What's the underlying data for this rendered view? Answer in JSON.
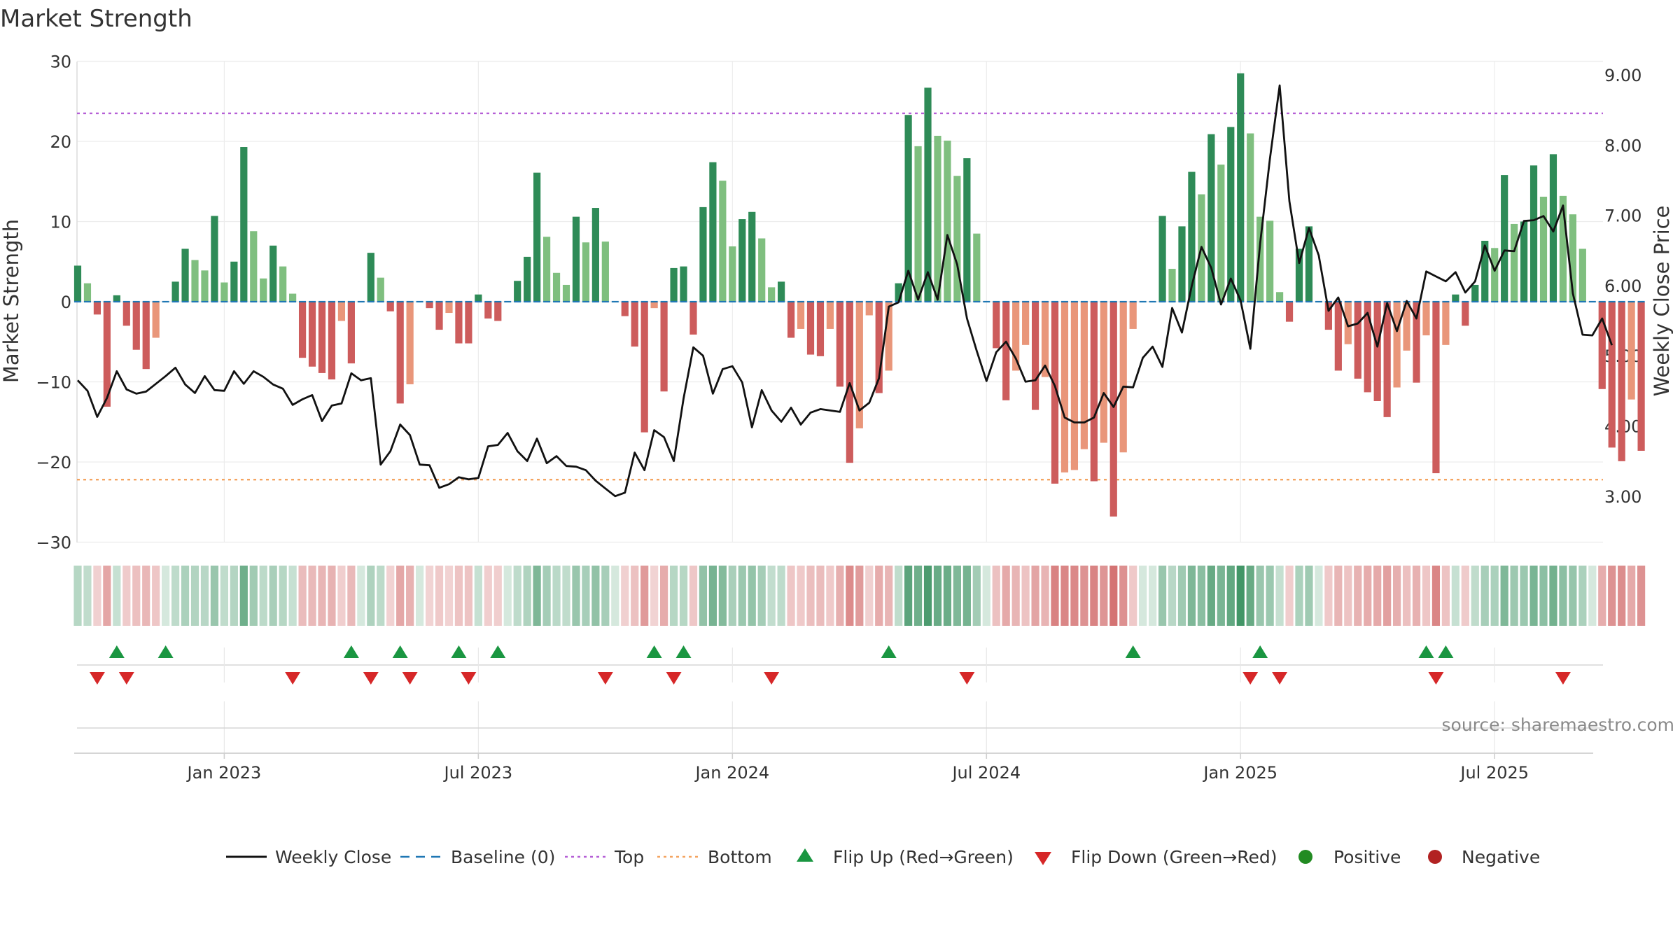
{
  "title": "Market Strength",
  "source": "source: sharemaestro.com",
  "colors": {
    "green_dark": "#2e8b57",
    "green_light": "#7fbf7f",
    "red_dark": "#cd5c5c",
    "red_light": "#e9967a",
    "line": "#111111",
    "baseline": "#1f77b4",
    "top": "#b55fd6",
    "bottom": "#f4a460",
    "flip_up": "#1a9641",
    "flip_down": "#d62728",
    "positive": "#228b22",
    "negative": "#b22222"
  },
  "chart_data": {
    "type": "bar",
    "title": "Market Strength",
    "ylabel": "Market Strength",
    "y2label": "Weekly Close Price",
    "ylim": [
      -30,
      30
    ],
    "y2lim": [
      2.4,
      9.2
    ],
    "yticks": [
      30,
      20,
      10,
      0,
      -10,
      -20,
      -30
    ],
    "yticks_labels": [
      "30",
      "20",
      "10",
      "0",
      "−10",
      "−20",
      "−30"
    ],
    "y2ticks": [
      9.0,
      8.0,
      7.0,
      6.0,
      5.0,
      4.0,
      3.0
    ],
    "y2ticks_labels": [
      "9.00",
      "8.00",
      "7.00",
      "6.00",
      "5.00",
      "4.00",
      "3.00"
    ],
    "xticks_index": [
      15,
      41,
      67,
      93,
      119,
      145
    ],
    "xticks_labels": [
      "Jan 2023",
      "Jul 2023",
      "Jan 2024",
      "Jul 2024",
      "Jan 2025",
      "Jul 2025"
    ],
    "top_level": 23.5,
    "bottom_level": -22.2,
    "baseline": 0,
    "strength": [
      4.5,
      2.3,
      -1.6,
      -13.1,
      0.8,
      -3,
      -6,
      -8.4,
      -4.5,
      0,
      2.5,
      6.6,
      5.2,
      3.9,
      10.7,
      2.4,
      5,
      19.3,
      8.8,
      2.9,
      7,
      4.4,
      1,
      -7,
      -8.1,
      -8.9,
      -9.7,
      -2.4,
      -7.7,
      0,
      6.1,
      3,
      -1.2,
      -12.7,
      -10.3,
      0,
      -0.8,
      -3.5,
      -1.4,
      -5.2,
      -5.2,
      0.9,
      -2.1,
      -2.4,
      0,
      2.6,
      5.6,
      16.1,
      8.1,
      3.6,
      2.1,
      10.6,
      7.4,
      11.7,
      7.5,
      0,
      -1.8,
      -5.6,
      -16.3,
      -0.8,
      -11.2,
      4.2,
      4.4,
      -4.1,
      11.8,
      17.4,
      15.1,
      6.9,
      10.3,
      11.2,
      7.9,
      1.8,
      2.5,
      -4.5,
      -3.4,
      -6.6,
      -6.8,
      -3.4,
      -10.6,
      -20.1,
      -15.8,
      -1.7,
      -11.4,
      -8.6,
      2.3,
      23.3,
      19.4,
      26.7,
      20.7,
      20.1,
      15.7,
      17.9,
      8.5,
      0,
      -5.8,
      -12.3,
      -8.6,
      -5.4,
      -13.5,
      -9.4,
      -22.7,
      -21.3,
      -21,
      -18.4,
      -22.4,
      -17.6,
      -26.8,
      -18.8,
      -3.4,
      0,
      0,
      10.7,
      4.1,
      9.4,
      16.2,
      13.4,
      20.9,
      17.1,
      21.8,
      28.5,
      21,
      10.6,
      10.1,
      1.2,
      -2.5,
      6.6,
      9.4,
      0,
      -3.5,
      -8.6,
      -5.3,
      -9.6,
      -11.3,
      -12.4,
      -14.4,
      -10.7,
      -6.1,
      -10.1,
      -4.2,
      -21.4,
      -5.4,
      0.9,
      -3,
      2.1,
      7.6,
      6.7,
      15.8,
      9.7,
      10,
      17,
      13.1,
      18.4,
      13.2,
      10.9,
      6.6,
      0,
      -10.9,
      -18.2,
      -19.9,
      -12.2,
      -18.6
    ],
    "close_price": [
      4.65,
      4.5,
      4.13,
      4.4,
      4.78,
      4.52,
      4.46,
      4.49,
      4.6,
      4.71,
      4.83,
      4.59,
      4.47,
      4.71,
      4.51,
      4.5,
      4.78,
      4.6,
      4.78,
      4.7,
      4.59,
      4.53,
      4.3,
      4.38,
      4.44,
      4.07,
      4.29,
      4.32,
      4.75,
      4.65,
      4.68,
      3.45,
      3.64,
      4.02,
      3.87,
      3.45,
      3.44,
      3.12,
      3.17,
      3.27,
      3.24,
      3.26,
      3.71,
      3.73,
      3.9,
      3.64,
      3.5,
      3.82,
      3.47,
      3.57,
      3.43,
      3.42,
      3.37,
      3.22,
      3.11,
      3.0,
      3.05,
      3.62,
      3.37,
      3.94,
      3.84,
      3.5,
      4.39,
      5.12,
      5.0,
      4.46,
      4.81,
      4.85,
      4.62,
      3.98,
      4.51,
      4.22,
      4.06,
      4.26,
      4.02,
      4.19,
      4.24,
      4.22,
      4.2,
      4.61,
      4.22,
      4.33,
      4.68,
      5.7,
      5.76,
      6.21,
      5.8,
      6.19,
      5.8,
      6.72,
      6.3,
      5.53,
      5.07,
      4.64,
      5.05,
      5.2,
      4.96,
      4.63,
      4.65,
      4.86,
      4.57,
      4.12,
      4.05,
      4.05,
      4.12,
      4.47,
      4.27,
      4.56,
      4.55,
      4.97,
      5.13,
      4.84,
      5.68,
      5.33,
      5.99,
      6.55,
      6.25,
      5.73,
      6.1,
      5.79,
      5.1,
      6.6,
      7.8,
      8.85,
      7.2,
      6.32,
      6.82,
      6.43,
      5.64,
      5.83,
      5.42,
      5.46,
      5.61,
      5.13,
      5.75,
      5.35,
      5.78,
      5.53,
      6.2,
      6.13,
      6.06,
      6.19,
      5.9,
      6.06,
      6.57,
      6.21,
      6.5,
      6.49,
      6.92,
      6.93,
      6.99,
      6.77,
      7.14,
      5.89,
      5.3,
      5.29,
      5.53,
      5.15
    ],
    "flip_up_index": [
      4,
      9,
      28,
      33,
      39,
      43,
      59,
      62,
      83,
      108,
      121,
      138,
      140
    ],
    "flip_down_index": [
      2,
      5,
      22,
      30,
      34,
      40,
      54,
      61,
      71,
      91,
      120,
      123,
      139,
      152
    ],
    "legend": [
      {
        "name": "Weekly Close",
        "kind": "line-solid"
      },
      {
        "name": "Baseline (0)",
        "kind": "line-dashed"
      },
      {
        "name": "Top",
        "kind": "line-dotted-top"
      },
      {
        "name": "Bottom",
        "kind": "line-dotted-bottom"
      },
      {
        "name": "Flip Up (Red→Green)",
        "kind": "triangle-up"
      },
      {
        "name": "Flip Down (Green→Red)",
        "kind": "triangle-down"
      },
      {
        "name": "Positive",
        "kind": "dot-positive"
      },
      {
        "name": "Negative",
        "kind": "dot-negative"
      }
    ]
  }
}
